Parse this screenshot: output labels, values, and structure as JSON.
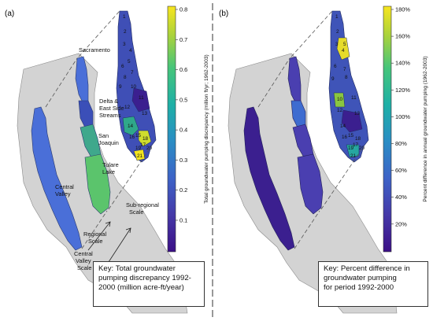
{
  "panels": [
    {
      "label": "(a)",
      "region_labels": [
        "Sacramento",
        "Delta &",
        "East Side",
        "Streams",
        "San",
        "Joaquin",
        "Tulare",
        "Lake",
        "Central",
        "Valley",
        "Sub-regional",
        "Scale",
        "Regional",
        "Scale",
        "Central",
        "Valley",
        "Scale"
      ],
      "colorbar": {
        "title": "Total groundwater pumping discrepancy (million ft/yr; 1962-2003)",
        "ticks": [
          "0.8",
          "0.7",
          "0.6",
          "0.5",
          "0.4",
          "0.3",
          "0.2",
          "0.1"
        ]
      },
      "key": [
        "Key: Total groundwater",
        "pumping discrepancy 1992-",
        "2000 (million acre-ft/year)"
      ]
    },
    {
      "label": "(b)",
      "colorbar": {
        "title": "Percent difference in annual groundwater pumping (1962-2003)",
        "ticks": [
          "180%",
          "160%",
          "140%",
          "120%",
          "100%",
          "80%",
          "60%",
          "40%",
          "20%"
        ]
      },
      "key": [
        "Key: Percent difference in",
        "groundwater pumping",
        "for period 1992-2000"
      ]
    }
  ],
  "subregion_numbers": [
    "1",
    "2",
    "3",
    "4",
    "5",
    "6",
    "7",
    "8",
    "9",
    "10",
    "11",
    "12",
    "13",
    "14",
    "15",
    "16",
    "17",
    "18",
    "19",
    "20",
    "21"
  ],
  "colors": {
    "state": "#d3d3d3",
    "viridis_low": "#3b1f8f",
    "viridis_mid": "#21a08a",
    "viridis_high": "#f2e41e"
  }
}
